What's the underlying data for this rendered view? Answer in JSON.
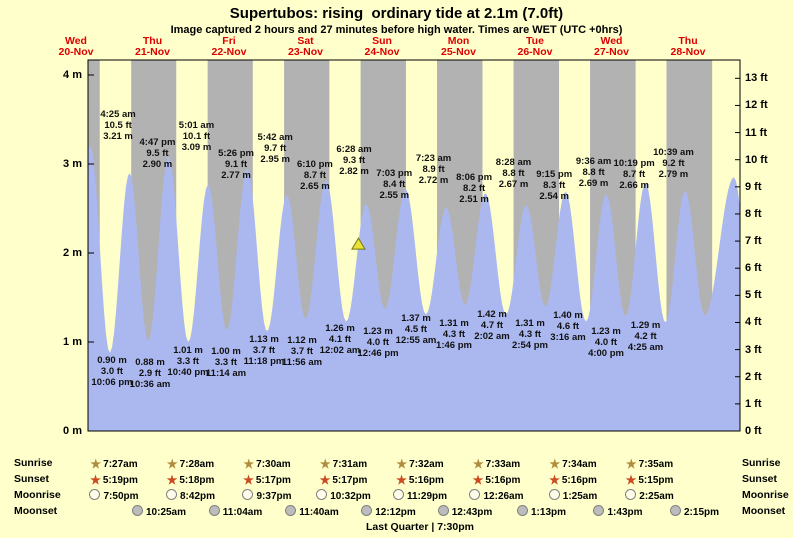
{
  "title": "Supertubos: rising  ordinary tide at 2.1m (7.0ft)",
  "subtitle": "Image captured 2 hours and 27 minutes before high water. Times are WET (UTC +0hrs)",
  "colors": {
    "background": "#ffffcc",
    "night_band": "#b2b2b2",
    "tide_fill": "#abb8f0",
    "day_label": "#dd0000",
    "frame": "#000000",
    "marker_fill": "#e8e13a",
    "marker_stroke": "#77770a",
    "sunrise_star": "#b08d3e",
    "sunset_star": "#cc4a22",
    "moonrise_fill": "#fffdea",
    "moonset_fill": "#bcbcbc"
  },
  "days": [
    {
      "dow": "Wed",
      "date": "20-Nov"
    },
    {
      "dow": "Thu",
      "date": "21-Nov"
    },
    {
      "dow": "Fri",
      "date": "22-Nov"
    },
    {
      "dow": "Sat",
      "date": "23-Nov"
    },
    {
      "dow": "Sun",
      "date": "24-Nov"
    },
    {
      "dow": "Mon",
      "date": "25-Nov"
    },
    {
      "dow": "Tue",
      "date": "26-Nov"
    },
    {
      "dow": "Wed",
      "date": "27-Nov"
    },
    {
      "dow": "Thu",
      "date": "28-Nov"
    }
  ],
  "y_axis": {
    "left_labels": [
      "4 m",
      "3 m",
      "2 m",
      "1 m",
      "0 m"
    ],
    "right_labels": [
      "13 ft",
      "12 ft",
      "11 ft",
      "10 ft",
      "9 ft",
      "8 ft",
      "7 ft",
      "6 ft",
      "5 ft",
      "4 ft",
      "3 ft",
      "2 ft",
      "1 ft",
      "0 ft"
    ]
  },
  "chart_data": {
    "type": "area",
    "time_unit": "days since Wed 20-Nov 00:00",
    "ylim_m": [
      0,
      4.17
    ],
    "tides": [
      {
        "type": "low",
        "m": "0.90 m",
        "ft": "3.0 ft",
        "time": "10:06 pm",
        "t": -0.079,
        "h": 0.9
      },
      {
        "type": "high",
        "time": "4:25 am",
        "ft": "10.5 ft",
        "m": "3.21 m",
        "t": 0.184,
        "h": 3.21
      },
      {
        "type": "low",
        "m": "0.88 m",
        "ft": "2.9 ft",
        "time": "10:36 am",
        "t": 0.442,
        "h": 0.88
      },
      {
        "type": "high",
        "time": "4:47 pm",
        "ft": "9.5 ft",
        "m": "2.90 m",
        "t": 0.699,
        "h": 2.9
      },
      {
        "type": "low",
        "m": "1.01 m",
        "ft": "3.3 ft",
        "time": "10:40 pm",
        "t": 0.944,
        "h": 1.01
      },
      {
        "type": "high",
        "time": "5:01 am",
        "ft": "10.1 ft",
        "m": "3.09 m",
        "t": 1.209,
        "h": 3.09
      },
      {
        "type": "low",
        "m": "1.00 m",
        "ft": "3.3 ft",
        "time": "11:14 am",
        "t": 1.468,
        "h": 1.0
      },
      {
        "type": "high",
        "time": "5:26 pm",
        "ft": "9.1 ft",
        "m": "2.77 m",
        "t": 1.726,
        "h": 2.77
      },
      {
        "type": "low",
        "m": "1.13 m",
        "ft": "3.7 ft",
        "time": "11:18 pm",
        "t": 1.971,
        "h": 1.13
      },
      {
        "type": "high",
        "time": "5:42 am",
        "ft": "9.7 ft",
        "m": "2.95 m",
        "t": 2.238,
        "h": 2.95
      },
      {
        "type": "low",
        "m": "1.12 m",
        "ft": "3.7 ft",
        "time": "11:56 am",
        "t": 2.497,
        "h": 1.12
      },
      {
        "type": "high",
        "time": "6:10 pm",
        "ft": "8.7 ft",
        "m": "2.65 m",
        "t": 2.757,
        "h": 2.65
      },
      {
        "type": "low",
        "m": "1.26 m",
        "ft": "4.1 ft",
        "time": "12:02 am",
        "t": 3.001,
        "h": 1.26
      },
      {
        "type": "high",
        "time": "6:28 am",
        "ft": "9.3 ft",
        "m": "2.82 m",
        "t": 3.269,
        "h": 2.82
      },
      {
        "type": "low",
        "m": "1.23 m",
        "ft": "4.0 ft",
        "time": "12:46 pm",
        "t": 3.532,
        "h": 1.23
      },
      {
        "type": "high",
        "time": "7:03 pm",
        "ft": "8.4 ft",
        "m": "2.55 m",
        "t": 3.794,
        "h": 2.55
      },
      {
        "type": "low",
        "m": "1.37 m",
        "ft": "4.5 ft",
        "time": "12:55 am",
        "t": 4.038,
        "h": 1.37
      },
      {
        "type": "high",
        "time": "7:23 am",
        "ft": "8.9 ft",
        "m": "2.72 m",
        "t": 4.308,
        "h": 2.72
      },
      {
        "type": "low",
        "m": "1.31 m",
        "ft": "4.3 ft",
        "time": "1:46 pm",
        "t": 4.574,
        "h": 1.31
      },
      {
        "type": "high",
        "time": "8:06 pm",
        "ft": "8.2 ft",
        "m": "2.51 m",
        "t": 4.838,
        "h": 2.51
      },
      {
        "type": "low",
        "m": "1.42 m",
        "ft": "4.7 ft",
        "time": "2:02 am",
        "t": 5.085,
        "h": 1.42
      },
      {
        "type": "high",
        "time": "8:28 am",
        "ft": "8.8 ft",
        "m": "2.67 m",
        "t": 5.353,
        "h": 2.67
      },
      {
        "type": "low",
        "m": "1.31 m",
        "ft": "4.3 ft",
        "time": "2:54 pm",
        "t": 5.621,
        "h": 1.31
      },
      {
        "type": "high",
        "time": "9:15 pm",
        "ft": "8.3 ft",
        "m": "2.54 m",
        "t": 5.885,
        "h": 2.54
      },
      {
        "type": "low",
        "m": "1.40 m",
        "ft": "4.6 ft",
        "time": "3:16 am",
        "t": 6.136,
        "h": 1.4
      },
      {
        "type": "high",
        "time": "9:36 am",
        "ft": "8.8 ft",
        "m": "2.69 m",
        "t": 6.4,
        "h": 2.69
      },
      {
        "type": "low",
        "m": "1.23 m",
        "ft": "4.0 ft",
        "time": "4:00 pm",
        "t": 6.667,
        "h": 1.23
      },
      {
        "type": "high",
        "time": "10:19 pm",
        "ft": "8.7 ft",
        "m": "2.66 m",
        "t": 6.93,
        "h": 2.66
      },
      {
        "type": "low",
        "m": "1.29 m",
        "ft": "4.2 ft",
        "time": "4:25 am",
        "t": 7.184,
        "h": 1.29
      },
      {
        "type": "high",
        "time": "10:39 am",
        "ft": "9.2 ft",
        "m": "2.79 m",
        "t": 7.444,
        "h": 2.79
      }
    ],
    "curve_tail": [
      {
        "t": 7.705,
        "h": 1.22
      },
      {
        "t": 7.962,
        "h": 2.7
      },
      {
        "t": 8.219,
        "h": 1.3
      },
      {
        "t": 8.6,
        "h": 2.85
      },
      {
        "t": 8.86,
        "h": 1.25
      }
    ],
    "marker": {
      "t": 3.692,
      "height_m": 2.1,
      "note": "current tide level 2.1m rising"
    }
  },
  "sun_moon": {
    "rows": [
      {
        "id": "sunrise",
        "label": "Sunrise",
        "icon": "star",
        "times": [
          "7:27am",
          "7:28am",
          "7:30am",
          "7:31am",
          "7:32am",
          "7:33am",
          "7:34am",
          "7:35am"
        ]
      },
      {
        "id": "sunset",
        "label": "Sunset",
        "icon": "star",
        "times": [
          "5:19pm",
          "5:18pm",
          "5:17pm",
          "5:17pm",
          "5:16pm",
          "5:16pm",
          "5:16pm",
          "5:15pm"
        ]
      },
      {
        "id": "moonrise",
        "label": "Moonrise",
        "icon": "moon-light",
        "times": [
          "7:50pm",
          "8:42pm",
          "9:37pm",
          "10:32pm",
          "11:29pm",
          "12:26am",
          "1:25am",
          "2:25am"
        ]
      },
      {
        "id": "moonset",
        "label": "Moonset",
        "icon": "moon-dark",
        "times": [
          "10:25am",
          "11:04am",
          "11:40am",
          "12:12pm",
          "12:43pm",
          "1:13pm",
          "1:43pm",
          "2:15pm"
        ]
      }
    ],
    "moon_phase": "Last Quarter | 7:30pm"
  }
}
